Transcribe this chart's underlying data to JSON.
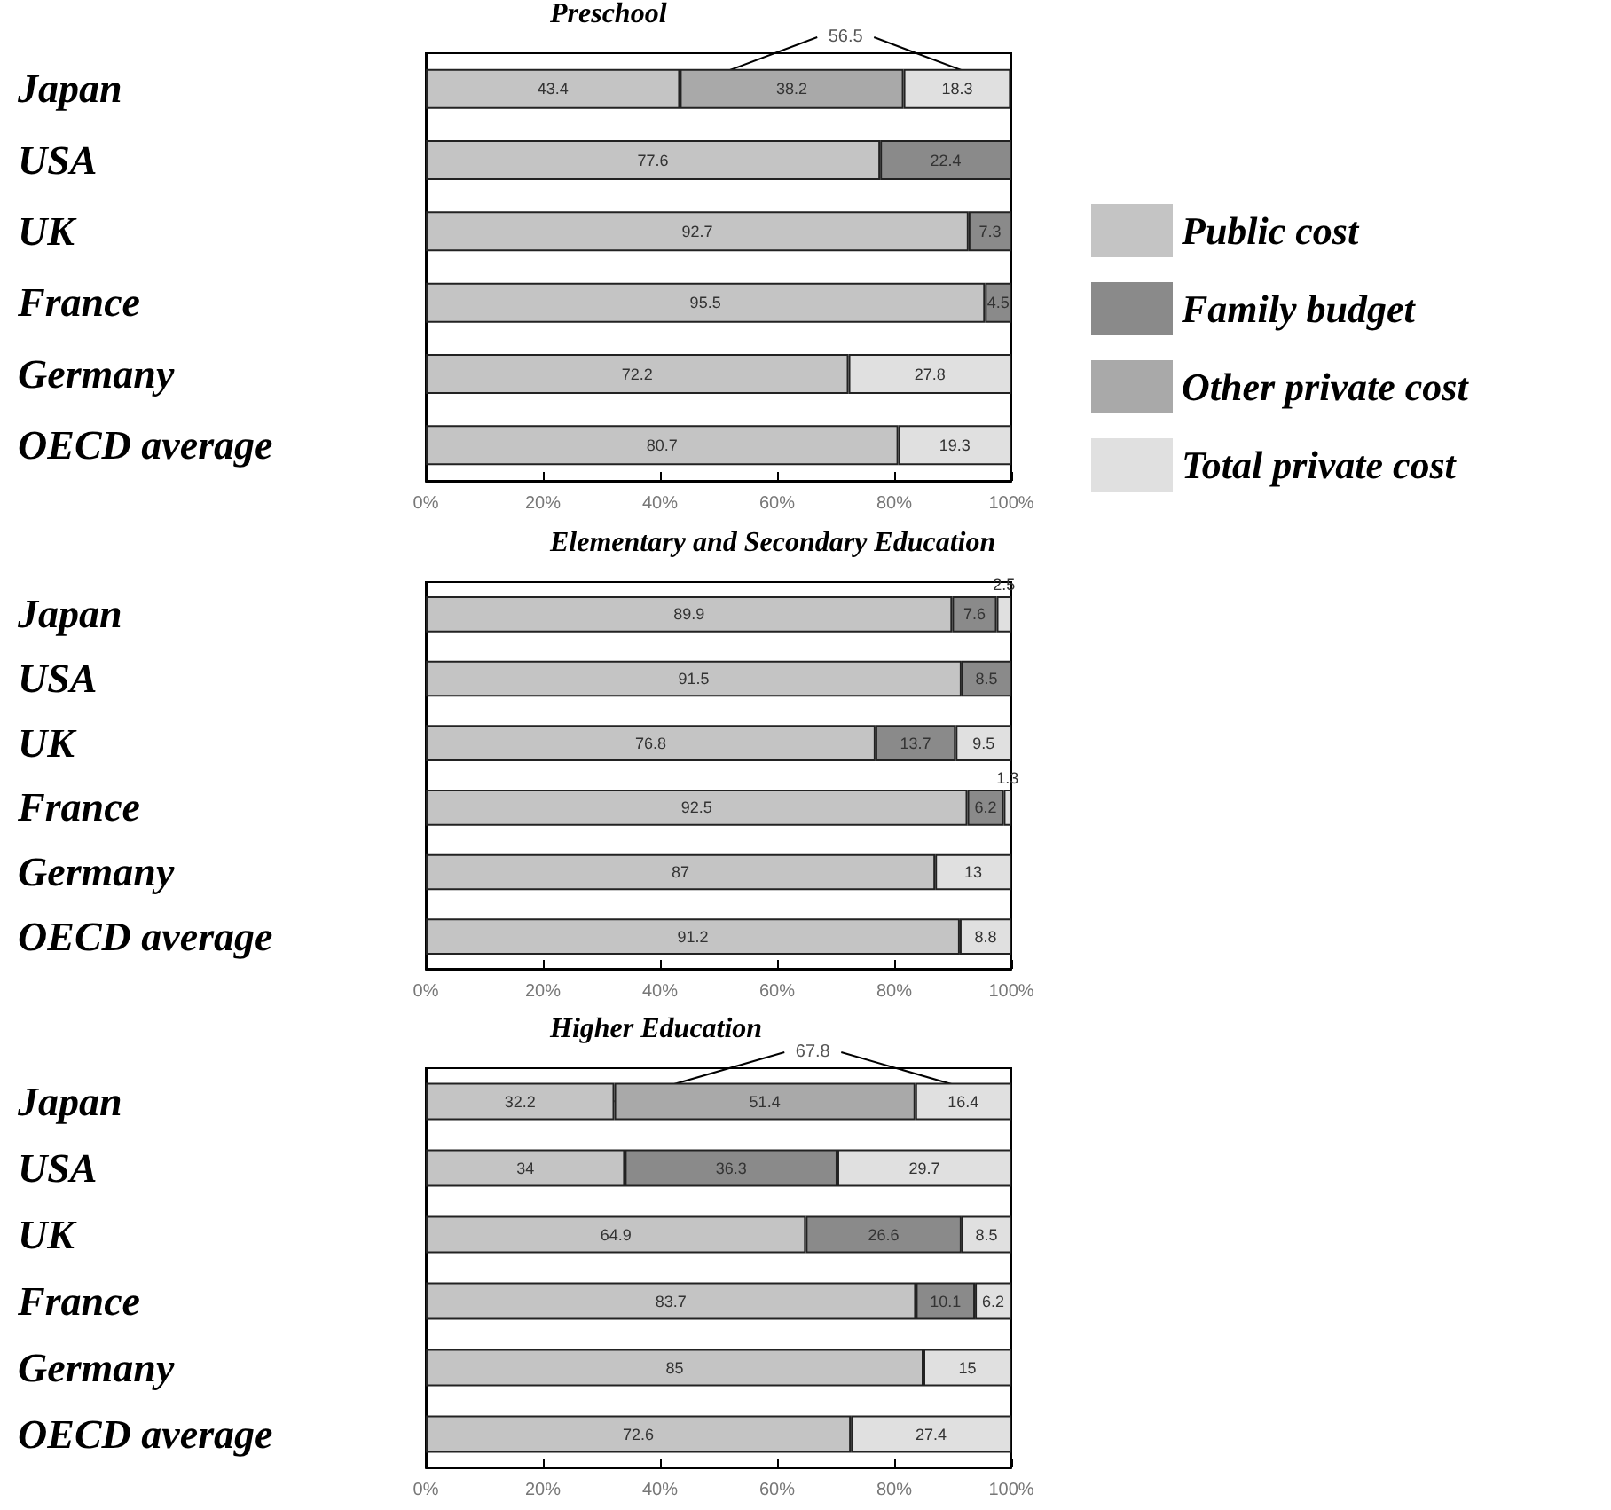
{
  "chart_data": [
    {
      "type": "bar",
      "orientation": "horizontal",
      "stacked": true,
      "title": "Preschool",
      "categories": [
        "Japan",
        "USA",
        "UK",
        "France",
        "Germany",
        "OECD average"
      ],
      "series": [
        {
          "name": "Public cost",
          "color": "#c4c4c4",
          "values": [
            43.4,
            77.6,
            92.7,
            95.5,
            72.2,
            80.7
          ]
        },
        {
          "name": "Family budget",
          "color": "#8a8a8a",
          "values": [
            null,
            22.4,
            7.3,
            4.5,
            null,
            null
          ]
        },
        {
          "name": "Other private cost",
          "color": "#a9a9a9",
          "values": [
            38.2,
            null,
            null,
            null,
            null,
            null
          ]
        },
        {
          "name": "Total private cost",
          "color": "#e0e0e0",
          "values": [
            18.3,
            null,
            null,
            null,
            27.8,
            19.3
          ]
        }
      ],
      "xlim": [
        0,
        100
      ],
      "xticks": [
        {
          "value": 0,
          "label": "0%"
        },
        {
          "value": 20,
          "label": "20%"
        },
        {
          "value": 40,
          "label": "40%"
        },
        {
          "value": 60,
          "label": "60%"
        },
        {
          "value": 80,
          "label": "80%"
        },
        {
          "value": 100,
          "label": "100%"
        }
      ],
      "data_labels": true,
      "grid": false,
      "legend": "right",
      "annotations": [
        {
          "text": "56.5",
          "x": 100,
          "y": "Japan"
        }
      ]
    },
    {
      "type": "bar",
      "orientation": "horizontal",
      "stacked": true,
      "title": "Elementary and Secondary Education",
      "categories": [
        "Japan",
        "USA",
        "UK",
        "France",
        "Germany",
        "OECD average"
      ],
      "series": [
        {
          "color": "#c4c4c4",
          "values": [
            89.9,
            91.5,
            76.8,
            92.5,
            87,
            91.2
          ]
        },
        {
          "color": "#8a8a8a",
          "values": [
            7.6,
            8.5,
            13.7,
            6.2,
            null,
            null
          ]
        },
        {
          "color": "#e0e0e0",
          "values": [
            2.5,
            null,
            9.5,
            1.3,
            13,
            8.8
          ]
        }
      ],
      "xlim": [
        0,
        100
      ],
      "xticks": [
        {
          "value": 0,
          "label": "0%"
        },
        {
          "value": 20,
          "label": "20%"
        },
        {
          "value": 40,
          "label": "40%"
        },
        {
          "value": 60,
          "label": "60%"
        },
        {
          "value": 80,
          "label": "80%"
        },
        {
          "value": 100,
          "label": "100%"
        }
      ],
      "data_labels": true,
      "grid": false,
      "legend": false
    },
    {
      "type": "bar",
      "orientation": "horizontal",
      "stacked": true,
      "title": "Higher Education",
      "categories": [
        "Japan",
        "USA",
        "UK",
        "France",
        "Germany",
        "OECD average"
      ],
      "series": [
        {
          "color": "#c4c4c4",
          "values": [
            32.2,
            34,
            64.9,
            83.7,
            85,
            72.6
          ]
        },
        {
          "color": "#8a8a8a",
          "values": [
            null,
            36.3,
            26.6,
            10.1,
            null,
            null
          ]
        },
        {
          "color": "#a9a9a9",
          "values": [
            51.4,
            null,
            null,
            null,
            null,
            null
          ]
        },
        {
          "color": "#e0e0e0",
          "values": [
            16.4,
            29.7,
            8.5,
            6.2,
            15,
            27.4
          ]
        }
      ],
      "xlim": [
        0,
        100
      ],
      "xticks": [
        {
          "value": 0,
          "label": "0%"
        },
        {
          "value": 20,
          "label": "20%"
        },
        {
          "value": 40,
          "label": "40%"
        },
        {
          "value": 60,
          "label": "60%"
        },
        {
          "value": 80,
          "label": "80%"
        },
        {
          "value": 100,
          "label": "100%"
        }
      ],
      "data_labels": true,
      "grid": false,
      "legend": false,
      "annotations": [
        {
          "text": "67.8",
          "x": 100,
          "y": "Japan"
        }
      ]
    }
  ]
}
